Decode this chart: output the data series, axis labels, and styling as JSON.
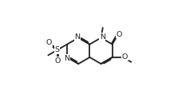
{
  "bg_color": "#ffffff",
  "line_color": "#222222",
  "line_width": 1.3,
  "font_size": 6.8,
  "figsize": [
    2.13,
    1.23
  ],
  "dpi": 100,
  "xlim": [
    0,
    10
  ],
  "ylim": [
    0,
    5.8
  ]
}
